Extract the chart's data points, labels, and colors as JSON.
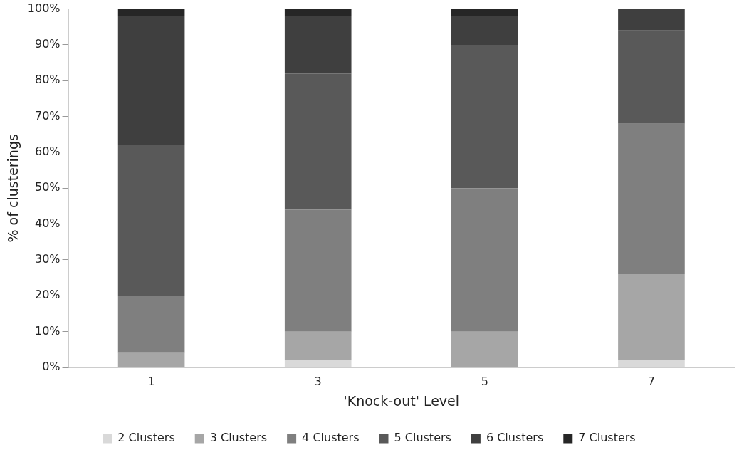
{
  "chart_data": {
    "type": "bar",
    "stacked": true,
    "xlabel": "'Knock-out' Level",
    "ylabel": "% of clusterings",
    "categories": [
      "1",
      "3",
      "5",
      "7"
    ],
    "series": [
      {
        "name": "2 Clusters",
        "color": "#d9d9d9",
        "values": [
          0,
          2,
          0,
          2
        ]
      },
      {
        "name": "3 Clusters",
        "color": "#a6a6a6",
        "values": [
          4,
          8,
          10,
          24
        ]
      },
      {
        "name": "4 Clusters",
        "color": "#7f7f7f",
        "values": [
          16,
          34,
          40,
          42
        ]
      },
      {
        "name": "5 Clusters",
        "color": "#595959",
        "values": [
          42,
          38,
          40,
          26
        ]
      },
      {
        "name": "6 Clusters",
        "color": "#3f3f3f",
        "values": [
          36,
          16,
          8,
          6
        ]
      },
      {
        "name": "7 Clusters",
        "color": "#262626",
        "values": [
          2,
          2,
          2,
          0
        ]
      }
    ],
    "ylim": [
      0,
      100
    ],
    "yticks": [
      {
        "value": 0,
        "label": "0%"
      },
      {
        "value": 10,
        "label": "10%"
      },
      {
        "value": 20,
        "label": "20%"
      },
      {
        "value": 30,
        "label": "30%"
      },
      {
        "value": 40,
        "label": "40%"
      },
      {
        "value": 50,
        "label": "50%"
      },
      {
        "value": 60,
        "label": "60%"
      },
      {
        "value": 70,
        "label": "70%"
      },
      {
        "value": 80,
        "label": "80%"
      },
      {
        "value": 90,
        "label": "90%"
      },
      {
        "value": 100,
        "label": "100%"
      }
    ],
    "grid": false,
    "legend": "bottom"
  }
}
